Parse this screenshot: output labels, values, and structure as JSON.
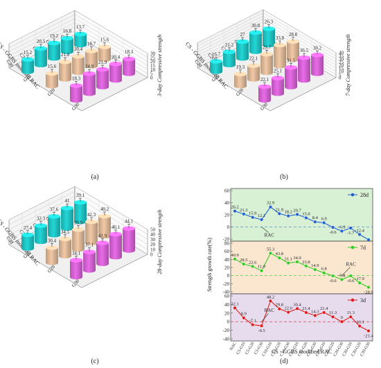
{
  "panel_labels": [
    "(a)",
    "(b)",
    "(c)",
    "(d)"
  ],
  "chart_data": [
    {
      "type": "bar",
      "title": "",
      "zlabel": "3-day Compressive strength",
      "axis_label": "CS - GGBS modified RAC",
      "zlim": [
        0,
        30
      ],
      "z_ticks": [
        "0",
        "5",
        "10",
        "15",
        "20",
        "25",
        "30"
      ],
      "row_categories": [
        "G10",
        "G20",
        "G30"
      ],
      "col_categories": [
        "C5",
        "C10",
        "C15",
        "C20",
        "C30"
      ],
      "series": [
        {
          "name": "",
          "values": [
            13.7,
            16.8,
            19.2,
            20.5,
            15.2
          ]
        },
        {
          "name": "",
          "values": [
            15.6,
            18.7,
            20.4,
            21.8,
            15.6
          ]
        },
        {
          "name": "",
          "values": [
            18.3,
            20.4,
            21.9,
            24.9,
            18.3
          ]
        }
      ],
      "colors": [
        "#22d6d6",
        "#f2c9a6",
        "#e96be8"
      ]
    },
    {
      "type": "bar",
      "title": "",
      "zlabel": "7-day Compressive strength",
      "axis_label": "CS - GGBS modified RAC",
      "zlim": [
        0,
        40
      ],
      "z_ticks": [
        "0",
        "5",
        "10",
        "15",
        "20",
        "25",
        "30",
        "35",
        "40"
      ],
      "row_categories": [
        "G10",
        "G20",
        "G30"
      ],
      "col_categories": [
        "C5",
        "C10",
        "C15",
        "C20",
        "C30"
      ],
      "series": [
        {
          "name": "",
          "values": [
            26.3,
            30.8,
            27,
            21.2,
            16.7
          ]
        },
        {
          "name": "",
          "values": [
            28.8,
            33.8,
            29.7,
            22.1,
            19.3
          ]
        },
        {
          "name": "",
          "values": [
            30.2,
            36.5,
            31.5,
            25.1,
            22.1
          ]
        }
      ],
      "colors": [
        "#22d6d6",
        "#f2c9a6",
        "#e96be8"
      ]
    },
    {
      "type": "bar",
      "title": "",
      "zlabel": "28-day Compressive strength",
      "axis_label": "CS - GGBS modified RAC",
      "zlim": [
        0,
        50
      ],
      "z_ticks": [
        "0",
        "10",
        "20",
        "30",
        "40",
        "50"
      ],
      "row_categories": [
        "G10",
        "G20",
        "G30"
      ],
      "col_categories": [
        "C5",
        "C10",
        "C15",
        "C20",
        "C30"
      ],
      "series": [
        {
          "name": "",
          "values": [
            39.1,
            41,
            37.6,
            32.3,
            27.4
          ]
        },
        {
          "name": "",
          "values": [
            40.2,
            42.3,
            39.9,
            34.5,
            30.4
          ]
        },
        {
          "name": "",
          "values": [
            44.1,
            46.1,
            41.9,
            37.1,
            34.1
          ]
        }
      ],
      "colors": [
        "#22d6d6",
        "#f2c9a6",
        "#e96be8"
      ]
    },
    {
      "type": "line",
      "title": "",
      "xlabel": "CS - GGBS modified RAC",
      "ylabel": "Strength growth rate(%)",
      "categories": [
        "NAC",
        "C5-G10",
        "C5-G20",
        "C5-G30",
        "C10-G10",
        "C10-G20",
        "C10-G30",
        "C15-G10",
        "C15-G20",
        "C15-G30",
        "C20-G10",
        "C20-G20",
        "C20-G30",
        "C30-G10",
        "C30-G20",
        "C30-G30"
      ],
      "panels": [
        {
          "name": "28d",
          "ylim": [
            -20,
            60
          ],
          "y_ticks": [
            "-20",
            "0",
            "20",
            "40",
            "60"
          ],
          "values": [
            26.2,
            21.3,
            15.9,
            12.1,
            32.9,
            21.9,
            18.2,
            20.7,
            15.0,
            8.4,
            6.9,
            -0.6,
            -6.9,
            -1.7,
            -12.4,
            -21.0
          ],
          "labels": [
            "26.2",
            "21.3",
            "15.9",
            "12.1",
            "32.9",
            "21.9",
            "18.2",
            "20.7",
            "15.0",
            "8.4",
            "6.9",
            "-0.6",
            "-6.9",
            "-1.7",
            "-12.4",
            "-21.0"
          ],
          "color": "#1f5fd1",
          "background": "#d8f0d4",
          "annotation": "RAC"
        },
        {
          "name": "7d",
          "ylim": [
            -40,
            80
          ],
          "y_ticks": [
            "-40",
            "-20",
            "0",
            "20",
            "40",
            "60",
            "80"
          ],
          "values": [
            40.9,
            28.5,
            22.6,
            11.9,
            55.3,
            43.8,
            31.1,
            34.0,
            23.8,
            14.9,
            6.8,
            -0.6,
            -9.8,
            -0.6,
            -17.9,
            -28.9
          ],
          "labels": [
            "40.9",
            "28.5",
            "22.6",
            "11.9",
            "55.3",
            "43.8",
            "31.1",
            "34.0",
            "23.8",
            "14.9",
            "6.8",
            "-0.6",
            "-9.8",
            "-0.6",
            "-17.9",
            "-28.9"
          ],
          "color": "#33cc22",
          "background": "#fbe7cf",
          "annotation": "RAC"
        },
        {
          "name": "3d",
          "ylim": [
            -40,
            60
          ],
          "y_ticks": [
            "-40",
            "-20",
            "0",
            "20",
            "40",
            "60"
          ],
          "values": [
            32.1,
            8.9,
            -7.1,
            -9.5,
            48.2,
            29.8,
            22.0,
            30.4,
            21.4,
            14.3,
            21.4,
            11.3,
            0,
            11.3,
            -10.1,
            -21.4
          ],
          "labels": [
            "32.1",
            "8.9",
            "-7.1",
            "-9.5",
            "48.2",
            "29.8",
            "22.0",
            "30.4",
            "21.4",
            "14.3",
            "21.4",
            "11.3",
            "0",
            "11.3",
            "-10.1",
            "-21.4"
          ],
          "color": "#e01b1b",
          "background": "#e6dcee",
          "annotation": "RAC"
        }
      ]
    }
  ]
}
